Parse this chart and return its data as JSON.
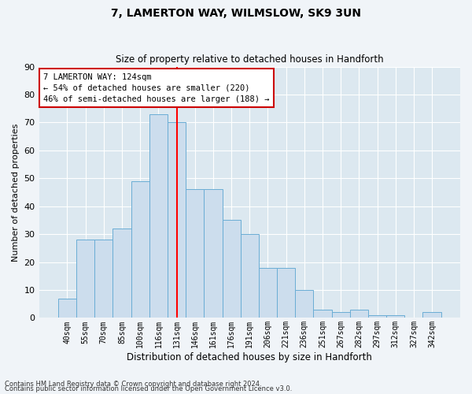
{
  "title1": "7, LAMERTON WAY, WILMSLOW, SK9 3UN",
  "title2": "Size of property relative to detached houses in Handforth",
  "xlabel": "Distribution of detached houses by size in Handforth",
  "ylabel": "Number of detached properties",
  "bar_labels": [
    "40sqm",
    "55sqm",
    "70sqm",
    "85sqm",
    "100sqm",
    "116sqm",
    "131sqm",
    "146sqm",
    "161sqm",
    "176sqm",
    "191sqm",
    "206sqm",
    "221sqm",
    "236sqm",
    "251sqm",
    "267sqm",
    "282sqm",
    "297sqm",
    "312sqm",
    "327sqm",
    "342sqm"
  ],
  "bar_values": [
    7,
    28,
    28,
    32,
    49,
    73,
    70,
    46,
    46,
    35,
    30,
    18,
    18,
    10,
    3,
    2,
    3,
    1,
    1,
    0,
    2
  ],
  "bar_color": "#ccdded",
  "bar_edge_color": "#6aadd5",
  "background_color": "#dce8f0",
  "grid_color": "#ffffff",
  "annotation_text": "7 LAMERTON WAY: 124sqm\n← 54% of detached houses are smaller (220)\n46% of semi-detached houses are larger (188) →",
  "annotation_box_color": "#ffffff",
  "annotation_box_edge": "#cc0000",
  "ylim": [
    0,
    90
  ],
  "yticks": [
    0,
    10,
    20,
    30,
    40,
    50,
    60,
    70,
    80,
    90
  ],
  "footer1": "Contains HM Land Registry data © Crown copyright and database right 2024.",
  "footer2": "Contains public sector information licensed under the Open Government Licence v3.0."
}
